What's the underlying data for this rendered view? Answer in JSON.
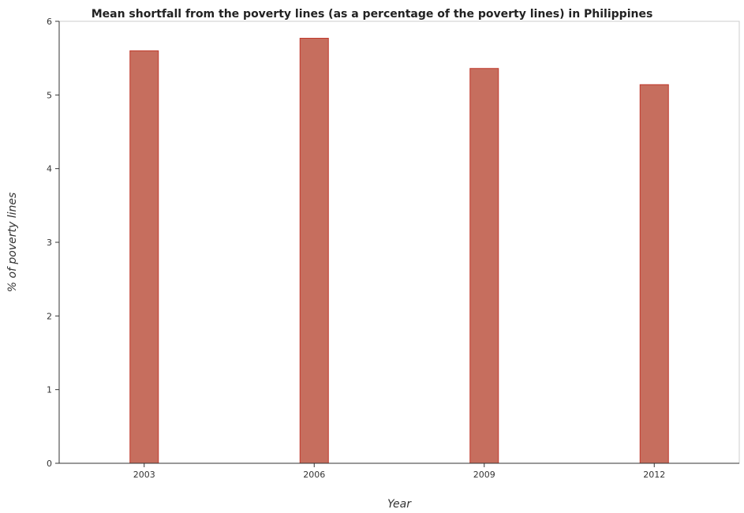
{
  "chart_data": {
    "type": "bar",
    "title": "Mean shortfall from the poverty lines (as a percentage of the poverty lines) in Philippines",
    "xlabel": "Year",
    "ylabel": "% of poverty lines",
    "categories": [
      "2003",
      "2006",
      "2009",
      "2012"
    ],
    "values": [
      5.6,
      5.77,
      5.36,
      5.14
    ],
    "ylim": [
      0,
      6
    ],
    "yticks": [
      "0",
      "1",
      "2",
      "3",
      "4",
      "5",
      "6"
    ],
    "grid": false,
    "bar_color": "#c66e5e",
    "bar_edge_color": "#c0392b"
  }
}
